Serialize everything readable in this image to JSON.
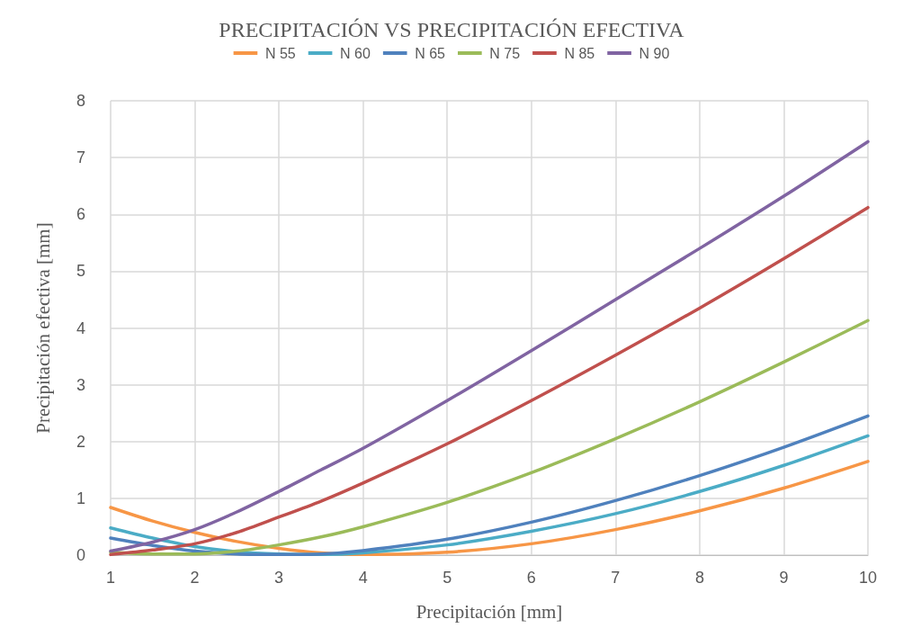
{
  "chart_data": {
    "type": "line",
    "title": "PRECIPITACIÓN VS PRECIPITACIÓN EFECTIVA",
    "xlabel": "Precipitación [mm]",
    "ylabel": "Precipitación efectiva [mm]",
    "x": [
      1,
      1.5,
      2,
      2.5,
      3,
      3.5,
      4,
      5,
      6,
      7,
      8,
      9,
      10
    ],
    "series": [
      {
        "name": "N 55",
        "color": "#f79646",
        "values": [
          0.84,
          0.6,
          0.4,
          0.24,
          0.12,
          0.04,
          0.01,
          0.05,
          0.2,
          0.45,
          0.78,
          1.18,
          1.65
        ]
      },
      {
        "name": "N 60",
        "color": "#4bacc6",
        "values": [
          0.48,
          0.3,
          0.15,
          0.06,
          0.02,
          0.01,
          0.04,
          0.18,
          0.42,
          0.73,
          1.12,
          1.58,
          2.1
        ]
      },
      {
        "name": "N 65",
        "color": "#4f81bd",
        "values": [
          0.3,
          0.17,
          0.07,
          0.02,
          0.01,
          0.02,
          0.08,
          0.28,
          0.58,
          0.96,
          1.4,
          1.9,
          2.45
        ]
      },
      {
        "name": "N 75",
        "color": "#9bbb59",
        "values": [
          0.05,
          0.02,
          0.02,
          0.07,
          0.18,
          0.32,
          0.5,
          0.93,
          1.45,
          2.05,
          2.7,
          3.4,
          4.13
        ]
      },
      {
        "name": "N 85",
        "color": "#c0504d",
        "values": [
          0.01,
          0.09,
          0.2,
          0.4,
          0.67,
          0.95,
          1.27,
          1.96,
          2.72,
          3.52,
          4.35,
          5.22,
          6.12
        ]
      },
      {
        "name": "N 90",
        "color": "#8064a2",
        "values": [
          0.07,
          0.23,
          0.45,
          0.76,
          1.12,
          1.5,
          1.88,
          2.72,
          3.6,
          4.5,
          5.4,
          6.32,
          7.28
        ]
      }
    ],
    "xlim": [
      1,
      10
    ],
    "xticks": [
      1,
      2,
      3,
      4,
      5,
      6,
      7,
      8,
      9,
      10
    ],
    "ylim": [
      0,
      8
    ],
    "yticks": [
      0,
      1,
      2,
      3,
      4,
      5,
      6,
      7,
      8
    ],
    "grid": true,
    "legend": "top",
    "marker": "none",
    "line_style": "solid"
  }
}
